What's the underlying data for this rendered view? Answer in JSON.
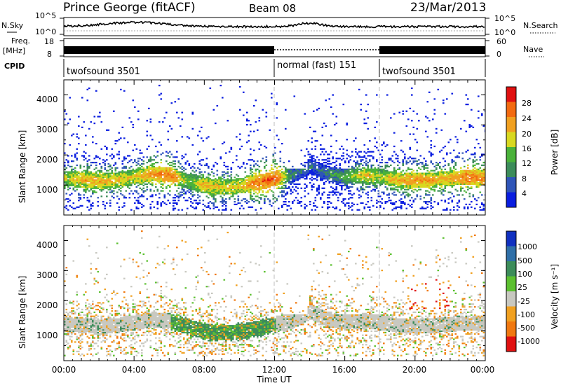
{
  "header": {
    "title": "Prince George (fitACF)",
    "beam": "Beam 08",
    "date": "23/Mar/2013"
  },
  "noise_panel": {
    "left_label": "N.Sky",
    "right_label": "N.Search",
    "left_ticks": [
      "10^5",
      "10^0"
    ],
    "right_ticks": [
      "10^5",
      "10^0"
    ]
  },
  "freq_panel": {
    "left_label_top": "Freq.",
    "left_label_unit": "[MHz]",
    "left_ticks": [
      "18",
      "8"
    ],
    "right_label": "Nave",
    "right_ticks": [
      "60",
      "0"
    ]
  },
  "cpid_panel": {
    "label": "CPID",
    "segments": [
      {
        "text": "twofsound 3501",
        "start_hour": 0,
        "end_hour": 12,
        "mode": "twofsound"
      },
      {
        "text": "normal (fast) 151",
        "start_hour": 12,
        "end_hour": 18,
        "mode": "normal"
      },
      {
        "text": "twofsound 3501",
        "start_hour": 18,
        "end_hour": 24,
        "mode": "twofsound"
      }
    ]
  },
  "power_panel": {
    "ylabel": "Slant Range [km]",
    "yticks": [
      "1000",
      "2000",
      "3000",
      "4000"
    ],
    "colorbar_label": "Power [dB]",
    "colorbar_ticks": [
      "4",
      "8",
      "12",
      "16",
      "20",
      "24",
      "28"
    ],
    "colors": [
      "#0a1ee0",
      "#2f55b8",
      "#3c8c5a",
      "#4ab23a",
      "#d8d820",
      "#f0a020",
      "#f26a10",
      "#e01010"
    ]
  },
  "velocity_panel": {
    "ylabel": "Slant Range [km]",
    "yticks": [
      "1000",
      "2000",
      "3000",
      "4000"
    ],
    "colorbar_label": "Velocity [m s⁻¹]",
    "colorbar_ticks": [
      "1000",
      "500",
      "100",
      "25",
      "-25",
      "-100",
      "-500",
      "-1000"
    ],
    "colors": [
      "#1030c0",
      "#2f6fa8",
      "#3c8c5a",
      "#5cc030",
      "#c8c8c0",
      "#f0a020",
      "#f07810",
      "#e01010"
    ]
  },
  "xaxis": {
    "label": "Time UT",
    "ticks": [
      "00:00",
      "04:00",
      "08:00",
      "12:00",
      "16:00",
      "20:00",
      "00:00"
    ]
  },
  "chart_data": {
    "type": "heatmap",
    "title": "Prince George (fitACF)",
    "xlabel": "Time UT",
    "ylabel": "Slant Range [km]",
    "xlim_hours": [
      0,
      24
    ],
    "ylim_km": [
      0,
      4500
    ],
    "description_note": "",
    "power_band_profile": {
      "hours": [
        0,
        1,
        2,
        3,
        4,
        5,
        6,
        7,
        8,
        9,
        10,
        11,
        12,
        13,
        14,
        15,
        16,
        17,
        18,
        19,
        20,
        21,
        22,
        23,
        24
      ],
      "main_range_km": [
        1200,
        1150,
        1100,
        1150,
        1250,
        1350,
        1300,
        1100,
        950,
        900,
        950,
        1050,
        1200,
        1300,
        1600,
        1350,
        1250,
        1300,
        1250,
        1150,
        1150,
        1150,
        1200,
        1250,
        1200
      ],
      "peak_power_db": [
        20,
        24,
        24,
        22,
        22,
        26,
        28,
        18,
        24,
        22,
        22,
        28,
        30,
        12,
        10,
        12,
        16,
        22,
        20,
        24,
        26,
        24,
        24,
        28,
        26
      ]
    }
  }
}
